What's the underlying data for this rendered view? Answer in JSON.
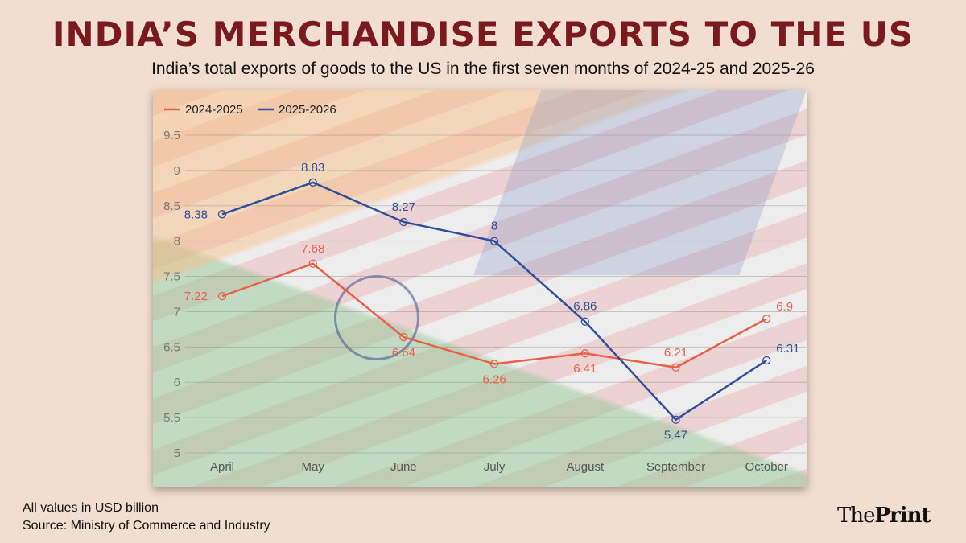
{
  "header": {
    "title": "INDIA’S MERCHANDISE EXPORTS TO THE US",
    "subtitle": "India’s total exports of goods to the US in the first seven months of 2024-25 and 2025-26"
  },
  "footer": {
    "units": "All values in USD billion",
    "source": "Source: Ministry of Commerce and Industry",
    "logo_light": "The",
    "logo_bold": "Print"
  },
  "chart_data": {
    "type": "line",
    "categories": [
      "April",
      "May",
      "June",
      "July",
      "August",
      "September",
      "October"
    ],
    "ylim": [
      5,
      9.5
    ],
    "yticks": [
      "5",
      "5.5",
      "6",
      "6.5",
      "7",
      "7.5",
      "8",
      "8.5",
      "9",
      "9.5"
    ],
    "grid": true,
    "legend": "top-left",
    "series": [
      {
        "name": "2024-2025",
        "color": "#e8604a",
        "values": [
          7.22,
          7.68,
          6.64,
          6.26,
          6.41,
          6.21,
          6.9
        ]
      },
      {
        "name": "2025-2026",
        "color": "#2f4f9a",
        "values": [
          8.38,
          8.83,
          8.27,
          8,
          6.86,
          5.47,
          6.31
        ]
      }
    ]
  }
}
